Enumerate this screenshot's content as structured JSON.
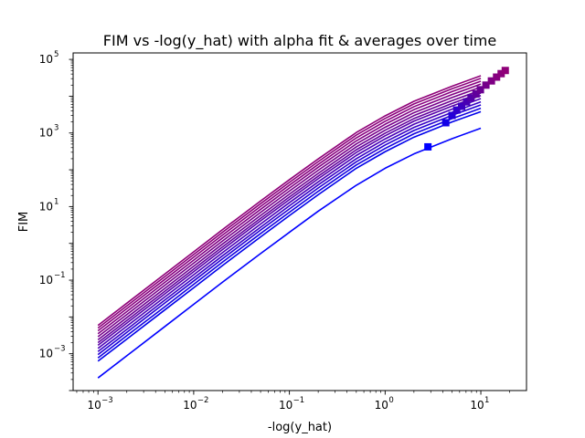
{
  "chart_data": {
    "type": "line",
    "title": "FIM vs -log(y_hat) with alpha fit & averages over time",
    "xlabel": "-log(y_hat)",
    "ylabel": "FIM",
    "xscale": "log",
    "yscale": "log",
    "xlim": [
      0.00055,
      30
    ],
    "ylim": [
      0.0001,
      150000
    ],
    "x_ticks": [
      {
        "value": 0.001,
        "base": "10",
        "exp": "−3"
      },
      {
        "value": 0.01,
        "base": "10",
        "exp": "−2"
      },
      {
        "value": 0.1,
        "base": "10",
        "exp": "−1"
      },
      {
        "value": 1,
        "base": "10",
        "exp": "0"
      },
      {
        "value": 10,
        "base": "10",
        "exp": "1"
      }
    ],
    "y_ticks": [
      {
        "value": 0.001,
        "base": "10",
        "exp": "−3"
      },
      {
        "value": 0.1,
        "base": "10",
        "exp": "−1"
      },
      {
        "value": 10,
        "base": "10",
        "exp": "1"
      },
      {
        "value": 1000,
        "base": "10",
        "exp": "3"
      },
      {
        "value": 100000,
        "base": "10",
        "exp": "5"
      }
    ],
    "grid": false,
    "legend": "none",
    "x": [
      0.001,
      0.002,
      0.005,
      0.01,
      0.02,
      0.05,
      0.1,
      0.2,
      0.5,
      1,
      2,
      5,
      10
    ],
    "series": [
      {
        "color": "#0000ff",
        "values": [
          0.00022,
          0.00088,
          0.0055,
          0.022,
          0.088,
          0.53,
          2.0,
          7.5,
          38,
          110,
          270,
          700,
          1350
        ]
      },
      {
        "color": "#0000ea",
        "values": [
          0.00063,
          0.0025,
          0.0156,
          0.062,
          0.25,
          1.5,
          5.7,
          21,
          110,
          310,
          770,
          2000,
          3800
        ]
      },
      {
        "color": "#1200e0",
        "values": [
          0.00077,
          0.0031,
          0.019,
          0.077,
          0.31,
          1.85,
          7.0,
          26,
          135,
          380,
          950,
          2450,
          4700
        ]
      },
      {
        "color": "#2400d2",
        "values": [
          0.00095,
          0.0038,
          0.024,
          0.095,
          0.38,
          2.3,
          8.6,
          32,
          165,
          470,
          1170,
          3020,
          5800
        ]
      },
      {
        "color": "#3600c4",
        "values": [
          0.00115,
          0.0046,
          0.029,
          0.115,
          0.46,
          2.75,
          10.5,
          39,
          200,
          570,
          1420,
          3650,
          7000
        ]
      },
      {
        "color": "#4800b6",
        "values": [
          0.0014,
          0.0056,
          0.035,
          0.14,
          0.56,
          3.35,
          12.8,
          47,
          245,
          690,
          1730,
          4450,
          8600
        ]
      },
      {
        "color": "#5600a8",
        "values": [
          0.0017,
          0.0068,
          0.0425,
          0.17,
          0.68,
          4.1,
          15.5,
          57,
          295,
          840,
          2100,
          5400,
          10400
        ]
      },
      {
        "color": "#62009c",
        "values": [
          0.002,
          0.008,
          0.05,
          0.2,
          0.8,
          4.8,
          18.2,
          67,
          350,
          990,
          2470,
          6350,
          12200
        ]
      },
      {
        "color": "#6c0092",
        "values": [
          0.0024,
          0.0096,
          0.06,
          0.24,
          0.96,
          5.75,
          21.8,
          80,
          420,
          1190,
          2970,
          7600,
          14600
        ]
      },
      {
        "color": "#76008a",
        "values": [
          0.0029,
          0.0116,
          0.0725,
          0.29,
          1.16,
          6.95,
          26.4,
          97,
          505,
          1430,
          3570,
          9200,
          17700
        ]
      },
      {
        "color": "#800084",
        "values": [
          0.0035,
          0.014,
          0.0875,
          0.35,
          1.4,
          8.4,
          31.8,
          117,
          610,
          1730,
          4310,
          11100,
          21300
        ]
      },
      {
        "color": "#880080",
        "values": [
          0.0042,
          0.0168,
          0.105,
          0.42,
          1.68,
          10.1,
          38.2,
          140,
          735,
          2080,
          5180,
          13300,
          25600
        ]
      },
      {
        "color": "#8c007c",
        "values": [
          0.005,
          0.02,
          0.125,
          0.5,
          2.0,
          12.0,
          45.5,
          167,
          875,
          2480,
          6170,
          15900,
          30500
        ]
      },
      {
        "color": "#8f0078",
        "values": [
          0.0059,
          0.0236,
          0.1475,
          0.59,
          2.36,
          14.2,
          53.7,
          197,
          1030,
          2920,
          7280,
          18700,
          36000
        ]
      }
    ],
    "averages": [
      {
        "x": 2.8,
        "y": 420,
        "color": "#0000ff"
      },
      {
        "x": 4.3,
        "y": 1900,
        "color": "#1200e6"
      },
      {
        "x": 5.0,
        "y": 3000,
        "color": "#2400d8"
      },
      {
        "x": 5.6,
        "y": 4200,
        "color": "#3000cc"
      },
      {
        "x": 6.3,
        "y": 5300,
        "color": "#3c00c0"
      },
      {
        "x": 7.1,
        "y": 7000,
        "color": "#4800b4"
      },
      {
        "x": 7.9,
        "y": 9000,
        "color": "#5400a8"
      },
      {
        "x": 8.9,
        "y": 11500,
        "color": "#60009c"
      },
      {
        "x": 9.9,
        "y": 15000,
        "color": "#6a0092"
      },
      {
        "x": 11.3,
        "y": 20000,
        "color": "#74008a"
      },
      {
        "x": 12.9,
        "y": 26000,
        "color": "#7e0084"
      },
      {
        "x": 14.6,
        "y": 33000,
        "color": "#860080"
      },
      {
        "x": 16.3,
        "y": 41000,
        "color": "#8a007c"
      },
      {
        "x": 18.0,
        "y": 50000,
        "color": "#8f0078"
      }
    ]
  }
}
